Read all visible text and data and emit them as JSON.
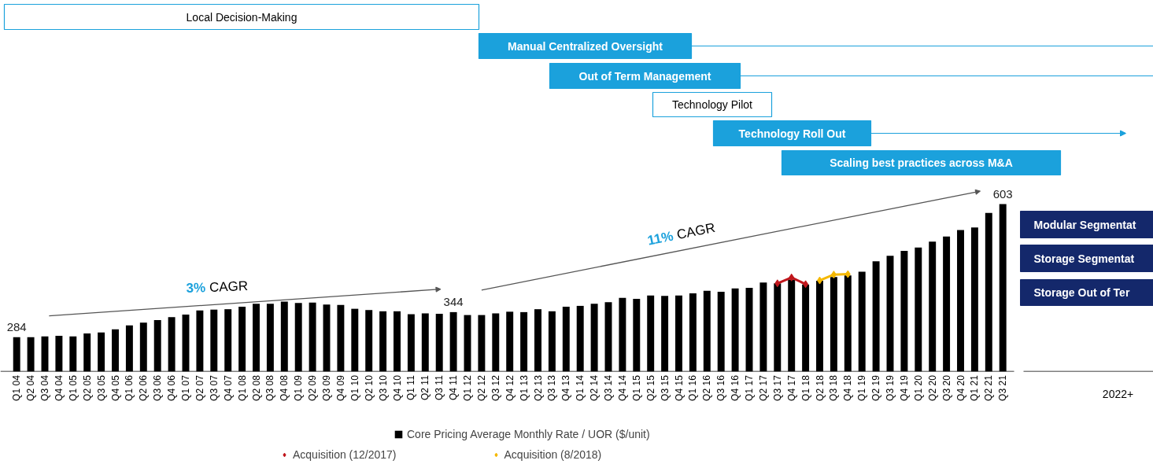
{
  "chart_data": {
    "type": "bar",
    "categories": [
      "Q1 04",
      "Q2 04",
      "Q3 04",
      "Q4 04",
      "Q1 05",
      "Q2 05",
      "Q3 05",
      "Q4 05",
      "Q1 06",
      "Q2 06",
      "Q3 06",
      "Q4 06",
      "Q1 07",
      "Q2 07",
      "Q3 07",
      "Q4 07",
      "Q1 08",
      "Q2 08",
      "Q3 08",
      "Q4 08",
      "Q1 09",
      "Q2 09",
      "Q3 09",
      "Q4 09",
      "Q1 10",
      "Q2 10",
      "Q3 10",
      "Q4 10",
      "Q1 11",
      "Q2 11",
      "Q3 11",
      "Q4 11",
      "Q1 12",
      "Q2 12",
      "Q3 12",
      "Q4 12",
      "Q1 13",
      "Q2 13",
      "Q3 13",
      "Q4 13",
      "Q1 14",
      "Q2 14",
      "Q3 14",
      "Q4 14",
      "Q1 15",
      "Q2 15",
      "Q3 15",
      "Q4 15",
      "Q1 16",
      "Q2 16",
      "Q3 16",
      "Q4 16",
      "Q1 17",
      "Q2 17",
      "Q3 17",
      "Q4 17",
      "Q1 18",
      "Q2 18",
      "Q3 18",
      "Q4 18",
      "Q1 19",
      "Q2 19",
      "Q3 19",
      "Q4 19",
      "Q1 20",
      "Q2 20",
      "Q3 20",
      "Q4 20",
      "Q1 21",
      "Q2 21",
      "Q3 21"
    ],
    "series": [
      {
        "name": "Core Pricing Average Monthly Rate / UOR ($/unit)",
        "color": "#000000",
        "values": [
          284,
          284,
          286,
          287,
          286,
          293,
          295,
          303,
          312,
          319,
          325,
          332,
          338,
          348,
          350,
          351,
          357,
          364,
          364,
          369,
          366,
          367,
          362,
          361,
          352,
          349,
          346,
          346,
          339,
          341,
          340,
          344,
          337,
          337,
          341,
          345,
          344,
          351,
          346,
          357,
          359,
          364,
          368,
          378,
          376,
          384,
          383,
          384,
          389,
          395,
          393,
          401,
          402,
          415,
          413,
          422,
          410,
          419,
          428,
          432,
          441,
          466,
          479,
          491,
          499,
          513,
          525,
          541,
          547,
          582,
          603
        ],
        "value_labels": [
          "284",
          null,
          null,
          null,
          null,
          null,
          null,
          null,
          null,
          null,
          null,
          null,
          null,
          null,
          null,
          null,
          null,
          null,
          null,
          null,
          null,
          null,
          null,
          null,
          null,
          null,
          null,
          null,
          null,
          null,
          null,
          "344",
          null,
          null,
          null,
          null,
          null,
          null,
          null,
          null,
          null,
          null,
          null,
          null,
          null,
          null,
          null,
          null,
          null,
          null,
          null,
          null,
          null,
          null,
          null,
          null,
          null,
          null,
          null,
          null,
          null,
          null,
          null,
          null,
          null,
          null,
          null,
          null,
          null,
          null,
          "603"
        ]
      },
      {
        "type": "line",
        "name": "Acquisition (12/2017)",
        "color": "#c0161c",
        "marker": "diamond",
        "x": [
          "Q3 17",
          "Q4 17",
          "Q1 18"
        ],
        "values": [
          413,
          427,
          411
        ]
      },
      {
        "type": "line",
        "name": "Acquisition (8/2018)",
        "color": "#f5b800",
        "marker": "diamond",
        "x": [
          "Q2 18",
          "Q3 18",
          "Q4 18"
        ],
        "values": [
          420,
          434,
          435
        ]
      }
    ],
    "ylim": [
      202,
      603
    ],
    "annotations": [
      "Local Decision-Making",
      "Manual Centralized Oversight",
      "Out of Term Management",
      "Technology Pilot",
      "Technology Roll Out",
      "Scaling best practices across M&A",
      "Modular Segmentat",
      "Storage Segmentat",
      "Storage Out of Ter",
      "2022+",
      "3% CAGR",
      "11% CAGR"
    ],
    "legend": "bottom",
    "grid": false,
    "tick_labels": "x"
  }
}
